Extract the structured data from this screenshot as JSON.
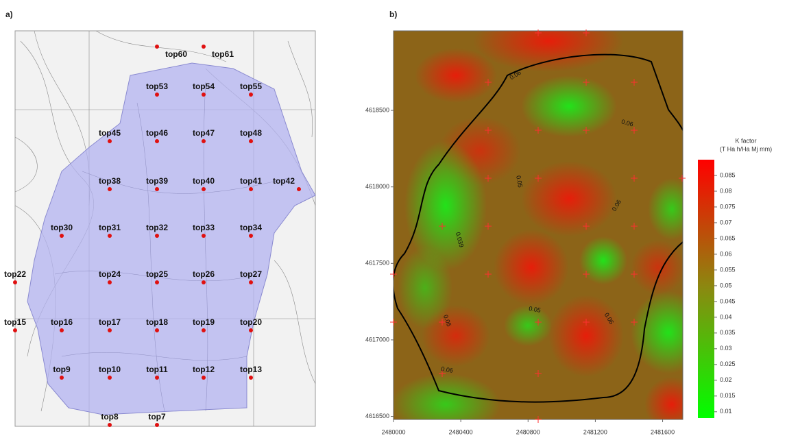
{
  "panel_a": {
    "label": "a)",
    "points": [
      {
        "label": "top60"
      },
      {
        "label": "top61"
      },
      {
        "label": "top53"
      },
      {
        "label": "top54"
      },
      {
        "label": "top55"
      },
      {
        "label": "top45"
      },
      {
        "label": "top46"
      },
      {
        "label": "top47"
      },
      {
        "label": "top48"
      },
      {
        "label": "top38"
      },
      {
        "label": "top39"
      },
      {
        "label": "top40"
      },
      {
        "label": "top41"
      },
      {
        "label": "top42"
      },
      {
        "label": "top30"
      },
      {
        "label": "top31"
      },
      {
        "label": "top32"
      },
      {
        "label": "top33"
      },
      {
        "label": "top34"
      },
      {
        "label": "top22"
      },
      {
        "label": "top24"
      },
      {
        "label": "top25"
      },
      {
        "label": "top26"
      },
      {
        "label": "top27"
      },
      {
        "label": "top15"
      },
      {
        "label": "top16"
      },
      {
        "label": "top17"
      },
      {
        "label": "top18"
      },
      {
        "label": "top19"
      },
      {
        "label": "top20"
      },
      {
        "label": "top9"
      },
      {
        "label": "top10"
      },
      {
        "label": "top11"
      },
      {
        "label": "top12"
      },
      {
        "label": "top13"
      },
      {
        "label": "top8"
      },
      {
        "label": "top7"
      }
    ]
  },
  "panel_b": {
    "label": "b)",
    "xlim": [
      2480000,
      2481720
    ],
    "xticks": [
      2480000,
      2480400,
      2480800,
      2481200,
      2481600
    ],
    "ylim": [
      4616480,
      4619020
    ],
    "yticks": [
      4616500,
      4617000,
      4617500,
      4618000,
      4618500
    ],
    "contour_labels": [
      "0.06",
      "0.06",
      "0.05",
      "0.06",
      "0.039",
      "0.05",
      "0.05",
      "0.06",
      "0.06"
    ],
    "colorbar": {
      "title": "K factor",
      "unit": "(T Ha h/Ha Mj mm)",
      "lim": [
        0.008,
        0.09
      ],
      "ticks": [
        0.01,
        0.015,
        0.02,
        0.025,
        0.03,
        0.035,
        0.04,
        0.045,
        0.05,
        0.055,
        0.06,
        0.065,
        0.07,
        0.075,
        0.08,
        0.085
      ]
    }
  }
}
